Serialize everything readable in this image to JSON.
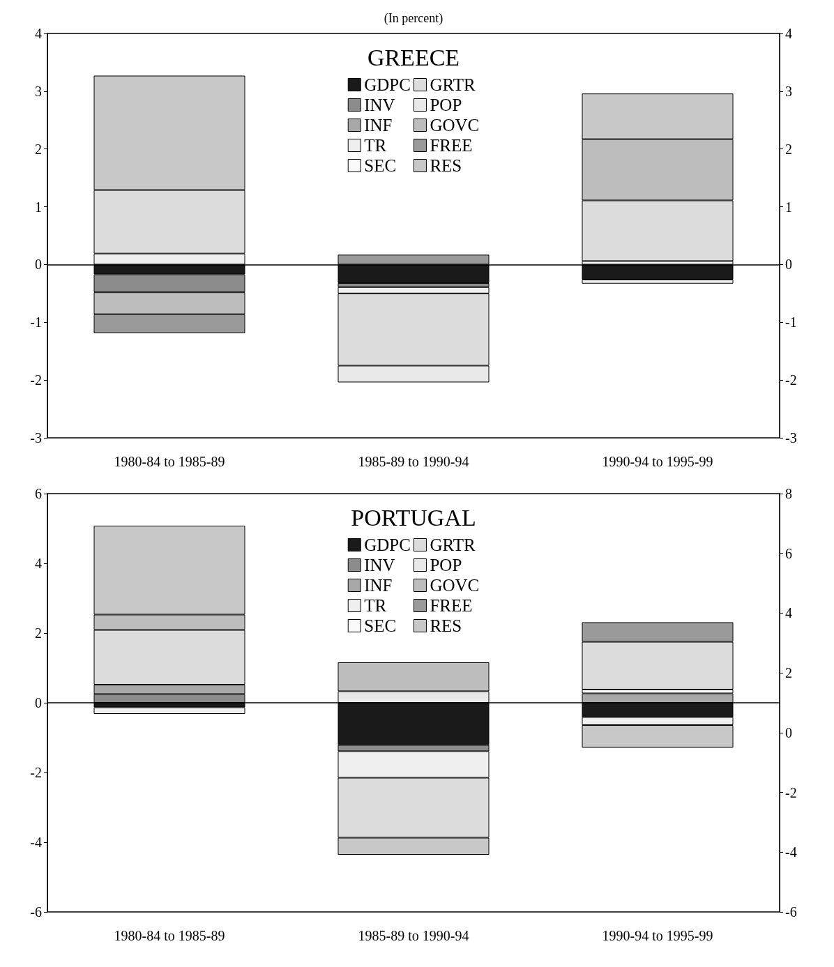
{
  "chart_data": [
    {
      "type": "bar",
      "title": "GREECE",
      "annotations": [
        "(In percent)"
      ],
      "stacked": true,
      "categories": [
        "1980-84 to 1985-89",
        "1985-89 to 1990-94",
        "1990-94 to 1995-99"
      ],
      "series": [
        {
          "name": "GDPC",
          "color": "#1a1a1a",
          "values": [
            -0.17,
            -0.32,
            -0.26
          ]
        },
        {
          "name": "INV",
          "color": "#8c8c8c",
          "values": [
            -0.31,
            -0.07,
            null
          ]
        },
        {
          "name": "INF",
          "color": "#a8a8a8",
          "values": [
            null,
            null,
            null
          ]
        },
        {
          "name": "TR",
          "color": "#f0f0f0",
          "values": [
            0.19,
            -0.11,
            -0.07
          ]
        },
        {
          "name": "SEC",
          "color": "#fafafa",
          "values": [
            null,
            null,
            0.06
          ]
        },
        {
          "name": "GRTR",
          "color": "#dcdcdc",
          "values": [
            1.1,
            -1.25,
            1.05
          ]
        },
        {
          "name": "POP",
          "color": "#e8e8e8",
          "values": [
            null,
            -0.29,
            null
          ]
        },
        {
          "name": "GOVC",
          "color": "#bdbdbd",
          "values": [
            -0.38,
            null,
            1.06
          ]
        },
        {
          "name": "FREE",
          "color": "#9a9a9a",
          "values": [
            -0.33,
            0.17,
            null
          ]
        },
        {
          "name": "RES",
          "color": "#c8c8c8",
          "values": [
            1.98,
            null,
            0.79
          ]
        }
      ],
      "ylim": [
        -3,
        4
      ],
      "yticks": [
        -3,
        -2,
        -1,
        0,
        1,
        2,
        3,
        4
      ],
      "y2lim": [
        -3,
        4
      ],
      "y2ticks": [
        -3,
        -2,
        -1,
        0,
        1,
        2,
        3,
        4
      ],
      "ref_lines": [
        {
          "axis": "y",
          "value": 0
        }
      ],
      "grid": false,
      "legend": "top"
    },
    {
      "type": "bar",
      "title": "PORTUGAL",
      "stacked": true,
      "categories": [
        "1980-84 to 1985-89",
        "1985-89 to 1990-94",
        "1990-94 to 1995-99"
      ],
      "series": [
        {
          "name": "GDPC",
          "color": "#1a1a1a",
          "values": [
            -0.13,
            -1.21,
            -0.41
          ]
        },
        {
          "name": "INV",
          "color": "#8c8c8c",
          "values": [
            0.25,
            -0.18,
            null
          ]
        },
        {
          "name": "INF",
          "color": "#a8a8a8",
          "values": [
            0.27,
            null,
            0.27
          ]
        },
        {
          "name": "TR",
          "color": "#f0f0f0",
          "values": [
            -0.19,
            -0.76,
            -0.23
          ]
        },
        {
          "name": "SEC",
          "color": "#fafafa",
          "values": [
            null,
            null,
            0.11
          ]
        },
        {
          "name": "GRTR",
          "color": "#dcdcdc",
          "values": [
            1.57,
            -1.72,
            1.37
          ]
        },
        {
          "name": "POP",
          "color": "#e8e8e8",
          "values": [
            null,
            0.33,
            null
          ]
        },
        {
          "name": "GOVC",
          "color": "#bdbdbd",
          "values": [
            0.44,
            0.83,
            null
          ]
        },
        {
          "name": "FREE",
          "color": "#9a9a9a",
          "values": [
            null,
            null,
            0.56
          ]
        },
        {
          "name": "RES",
          "color": "#c8c8c8",
          "values": [
            2.55,
            -0.49,
            -0.65
          ]
        }
      ],
      "ylim": [
        -6,
        6
      ],
      "yticks": [
        -6,
        -4,
        -2,
        0,
        2,
        4,
        6
      ],
      "y2lim": [
        -6,
        8
      ],
      "y2ticks": [
        -6,
        -4,
        -2,
        0,
        2,
        4,
        6,
        8
      ],
      "ref_lines": [
        {
          "axis": "y",
          "value": 0
        }
      ],
      "grid": false,
      "legend": "top"
    }
  ]
}
